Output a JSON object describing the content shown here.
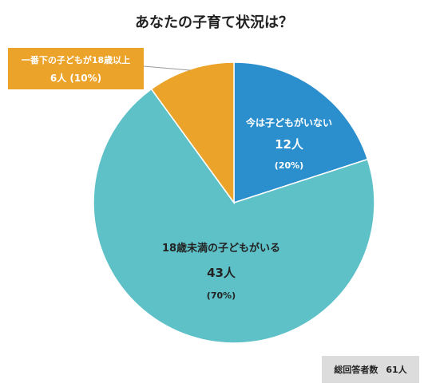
{
  "chart_data": {
    "type": "pie",
    "title": "あなたの子育て状況は？",
    "slices": [
      {
        "label": "今は子どもがいない",
        "count_label": "12人",
        "percent_label": "(20%)",
        "value": 12,
        "percent": 20,
        "color": "#2C8FCD"
      },
      {
        "label": "18歳未満の子どもがいる",
        "count_label": "43人",
        "percent_label": "(70%)",
        "value": 43,
        "percent": 70,
        "color": "#5FC1C8"
      },
      {
        "label": "一番下の子どもが18歳以上",
        "count_label": "6人",
        "percent_label": "(10%)",
        "value": 6,
        "percent": 10,
        "color": "#ECA32A"
      }
    ],
    "start_angle_deg": 0,
    "direction": "clockwise",
    "total": {
      "label": "総回答者数",
      "value": "61人"
    }
  }
}
